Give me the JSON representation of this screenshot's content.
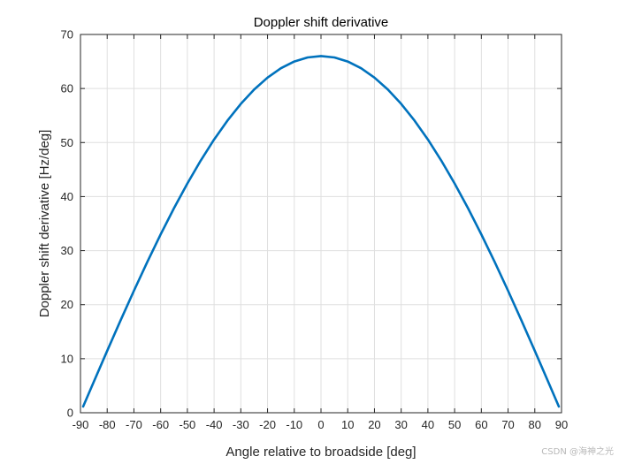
{
  "chart_data": {
    "type": "line",
    "title": "Doppler shift derivative",
    "xlabel": "Angle relative to broadside [deg]",
    "ylabel": "Doppler shift derivative [Hz/deg]",
    "xlim": [
      -90,
      90
    ],
    "ylim": [
      0,
      70
    ],
    "xticks": [
      -90,
      -80,
      -70,
      -60,
      -50,
      -40,
      -30,
      -20,
      -10,
      0,
      10,
      20,
      30,
      40,
      50,
      60,
      70,
      80,
      90
    ],
    "yticks": [
      0,
      10,
      20,
      30,
      40,
      50,
      60,
      70
    ],
    "grid": true,
    "series": [
      {
        "color": "#0072BD",
        "x": [
          -89,
          -85,
          -80,
          -75,
          -70,
          -65,
          -60,
          -55,
          -50,
          -45,
          -40,
          -35,
          -30,
          -25,
          -20,
          -15,
          -10,
          -5,
          0,
          5,
          10,
          15,
          20,
          25,
          30,
          35,
          40,
          45,
          50,
          55,
          60,
          65,
          70,
          75,
          80,
          85,
          89
        ],
        "y": [
          1.15,
          5.75,
          11.46,
          17.08,
          22.57,
          27.89,
          33.0,
          37.86,
          42.42,
          46.67,
          50.56,
          54.06,
          57.16,
          59.82,
          62.02,
          63.75,
          65.0,
          65.75,
          66.0,
          65.75,
          65.0,
          63.75,
          62.02,
          59.82,
          57.16,
          54.06,
          50.56,
          46.67,
          42.42,
          37.86,
          33.0,
          27.89,
          22.57,
          17.08,
          11.46,
          5.75,
          1.15
        ]
      }
    ]
  },
  "watermark": "CSDN @海神之光"
}
